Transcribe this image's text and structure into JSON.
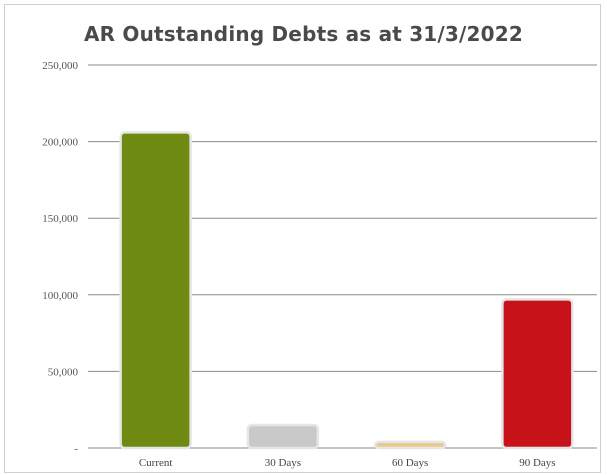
{
  "chart_data": {
    "type": "bar",
    "title": "AR Outstanding Debts as at 31/3/2022",
    "xlabel": "",
    "ylabel": "",
    "categories": [
      "Current",
      "30 Days",
      "60 Days",
      "90 Days"
    ],
    "values": [
      206000,
      15000,
      4000,
      97000
    ],
    "bar_colors": [
      "#6f8a12",
      "#c9c9c9",
      "#e8c98a",
      "#c8121a"
    ],
    "ylim": [
      0,
      250000
    ],
    "yticks": [
      0,
      50000,
      100000,
      150000,
      200000,
      250000
    ],
    "ytick_labels": [
      "-",
      "50,000",
      "100,000",
      "150,000",
      "200,000",
      "250,000"
    ],
    "grid": true,
    "legend": "none"
  }
}
